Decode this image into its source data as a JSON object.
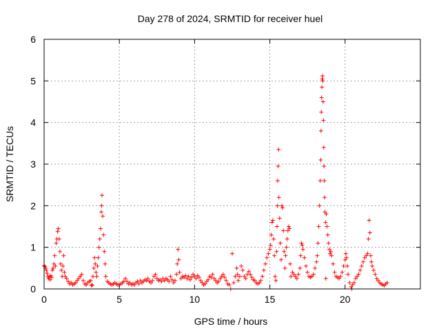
{
  "chart_data": {
    "type": "scatter",
    "title": "Day 278 of 2024, SRMTID for receiver huel",
    "xlabel": "GPS time / hours",
    "ylabel": "SRMTID / TECUs",
    "xlim": [
      0,
      25
    ],
    "ylim": [
      0,
      6
    ],
    "xticks": [
      0,
      5,
      10,
      15,
      20
    ],
    "yticks": [
      0,
      1,
      2,
      3,
      4,
      5,
      6
    ],
    "grid": true,
    "marker": "+",
    "marker_color": "#ff0000",
    "series": [
      {
        "name": "SRMTID",
        "points": [
          [
            0.0,
            0.56
          ],
          [
            0.05,
            0.54
          ],
          [
            0.1,
            0.5
          ],
          [
            0.15,
            0.45
          ],
          [
            0.2,
            0.38
          ],
          [
            0.25,
            0.3
          ],
          [
            0.3,
            0.25
          ],
          [
            0.35,
            0.3
          ],
          [
            0.4,
            0.22
          ],
          [
            0.45,
            0.32
          ],
          [
            0.5,
            0.28
          ],
          [
            0.55,
            0.45
          ],
          [
            0.6,
            0.5
          ],
          [
            0.65,
            0.6
          ],
          [
            0.7,
            0.8
          ],
          [
            0.75,
            0.55
          ],
          [
            0.8,
            1.1
          ],
          [
            0.85,
            1.2
          ],
          [
            0.9,
            1.38
          ],
          [
            0.95,
            1.45
          ],
          [
            1.0,
            1.2
          ],
          [
            1.05,
            0.9
          ],
          [
            1.1,
            0.6
          ],
          [
            1.15,
            0.45
          ],
          [
            1.2,
            0.3
          ],
          [
            1.25,
            0.55
          ],
          [
            1.3,
            0.8
          ],
          [
            1.35,
            0.4
          ],
          [
            1.4,
            0.3
          ],
          [
            1.5,
            0.25
          ],
          [
            1.6,
            0.18
          ],
          [
            1.7,
            0.12
          ],
          [
            1.8,
            0.15
          ],
          [
            1.9,
            0.1
          ],
          [
            2.0,
            0.12
          ],
          [
            2.1,
            0.15
          ],
          [
            2.2,
            0.2
          ],
          [
            2.3,
            0.25
          ],
          [
            2.4,
            0.3
          ],
          [
            2.5,
            0.35
          ],
          [
            2.6,
            0.2
          ],
          [
            2.7,
            0.12
          ],
          [
            2.8,
            0.1
          ],
          [
            2.9,
            0.15
          ],
          [
            3.0,
            0.18
          ],
          [
            3.1,
            0.2
          ],
          [
            3.15,
            0.08
          ],
          [
            3.2,
            0.1
          ],
          [
            3.25,
            0.3
          ],
          [
            3.3,
            0.5
          ],
          [
            3.35,
            0.75
          ],
          [
            3.4,
            0.6
          ],
          [
            3.45,
            0.4
          ],
          [
            3.5,
            0.3
          ],
          [
            3.55,
            0.55
          ],
          [
            3.6,
            0.75
          ],
          [
            3.65,
            1.0
          ],
          [
            3.7,
            1.2
          ],
          [
            3.75,
            1.45
          ],
          [
            3.8,
            1.85
          ],
          [
            3.82,
            2.0
          ],
          [
            3.85,
            2.25
          ],
          [
            3.9,
            1.75
          ],
          [
            3.95,
            1.3
          ],
          [
            4.0,
            0.9
          ],
          [
            4.05,
            0.6
          ],
          [
            4.1,
            0.3
          ],
          [
            4.2,
            0.18
          ],
          [
            4.3,
            0.15
          ],
          [
            4.4,
            0.12
          ],
          [
            4.5,
            0.1
          ],
          [
            4.6,
            0.12
          ],
          [
            4.7,
            0.15
          ],
          [
            4.8,
            0.12
          ],
          [
            4.9,
            0.1
          ],
          [
            5.0,
            0.1
          ],
          [
            5.1,
            0.12
          ],
          [
            5.2,
            0.15
          ],
          [
            5.3,
            0.18
          ],
          [
            5.4,
            0.25
          ],
          [
            5.5,
            0.18
          ],
          [
            5.6,
            0.12
          ],
          [
            5.7,
            0.15
          ],
          [
            5.8,
            0.1
          ],
          [
            5.9,
            0.12
          ],
          [
            6.0,
            0.1
          ],
          [
            6.1,
            0.15
          ],
          [
            6.2,
            0.18
          ],
          [
            6.3,
            0.12
          ],
          [
            6.4,
            0.2
          ],
          [
            6.5,
            0.15
          ],
          [
            6.6,
            0.18
          ],
          [
            6.7,
            0.22
          ],
          [
            6.8,
            0.2
          ],
          [
            6.9,
            0.25
          ],
          [
            7.0,
            0.18
          ],
          [
            7.1,
            0.15
          ],
          [
            7.2,
            0.2
          ],
          [
            7.3,
            0.3
          ],
          [
            7.4,
            0.35
          ],
          [
            7.5,
            0.25
          ],
          [
            7.6,
            0.2
          ],
          [
            7.7,
            0.22
          ],
          [
            7.8,
            0.18
          ],
          [
            7.9,
            0.25
          ],
          [
            8.0,
            0.2
          ],
          [
            8.1,
            0.25
          ],
          [
            8.2,
            0.22
          ],
          [
            8.3,
            0.18
          ],
          [
            8.4,
            0.3
          ],
          [
            8.5,
            0.22
          ],
          [
            8.6,
            0.15
          ],
          [
            8.7,
            0.2
          ],
          [
            8.8,
            0.35
          ],
          [
            8.85,
            0.6
          ],
          [
            8.9,
            0.95
          ],
          [
            8.95,
            0.7
          ],
          [
            9.0,
            0.4
          ],
          [
            9.1,
            0.25
          ],
          [
            9.2,
            0.3
          ],
          [
            9.3,
            0.28
          ],
          [
            9.4,
            0.32
          ],
          [
            9.5,
            0.25
          ],
          [
            9.6,
            0.3
          ],
          [
            9.7,
            0.22
          ],
          [
            9.8,
            0.28
          ],
          [
            9.9,
            0.35
          ],
          [
            10.0,
            0.3
          ],
          [
            10.1,
            0.25
          ],
          [
            10.2,
            0.32
          ],
          [
            10.3,
            0.28
          ],
          [
            10.4,
            0.2
          ],
          [
            10.5,
            0.15
          ],
          [
            10.6,
            0.1
          ],
          [
            10.7,
            0.12
          ],
          [
            10.8,
            0.18
          ],
          [
            10.9,
            0.22
          ],
          [
            11.0,
            0.3
          ],
          [
            11.1,
            0.28
          ],
          [
            11.2,
            0.35
          ],
          [
            11.3,
            0.25
          ],
          [
            11.4,
            0.2
          ],
          [
            11.5,
            0.15
          ],
          [
            11.6,
            0.18
          ],
          [
            11.7,
            0.25
          ],
          [
            11.8,
            0.3
          ],
          [
            11.9,
            0.35
          ],
          [
            12.0,
            0.28
          ],
          [
            12.1,
            0.2
          ],
          [
            12.2,
            0.12
          ],
          [
            12.3,
            0.1
          ],
          [
            12.4,
            0.0
          ],
          [
            12.5,
            0.85
          ],
          [
            12.6,
            0.15
          ],
          [
            12.7,
            0.3
          ],
          [
            12.8,
            0.5
          ],
          [
            12.85,
            0.35
          ],
          [
            12.9,
            0.2
          ],
          [
            13.0,
            0.3
          ],
          [
            13.1,
            0.55
          ],
          [
            13.2,
            0.45
          ],
          [
            13.3,
            0.3
          ],
          [
            13.4,
            0.25
          ],
          [
            13.5,
            0.35
          ],
          [
            13.6,
            0.42
          ],
          [
            13.7,
            0.35
          ],
          [
            13.8,
            0.28
          ],
          [
            13.9,
            0.22
          ],
          [
            14.0,
            0.2
          ],
          [
            14.1,
            0.15
          ],
          [
            14.2,
            0.12
          ],
          [
            14.3,
            0.15
          ],
          [
            14.4,
            0.2
          ],
          [
            14.5,
            0.3
          ],
          [
            14.6,
            0.45
          ],
          [
            14.7,
            0.6
          ],
          [
            14.8,
            0.75
          ],
          [
            14.9,
            0.85
          ],
          [
            15.0,
            0.95
          ],
          [
            15.05,
            1.05
          ],
          [
            15.1,
            1.3
          ],
          [
            15.15,
            1.6
          ],
          [
            15.2,
            1.65
          ],
          [
            15.25,
            1.2
          ],
          [
            15.3,
            0.8
          ],
          [
            15.35,
            0.3
          ],
          [
            15.4,
            0.2
          ],
          [
            15.45,
            0.9
          ],
          [
            15.48,
            1.5
          ],
          [
            15.5,
            2.0
          ],
          [
            15.52,
            2.6
          ],
          [
            15.55,
            2.95
          ],
          [
            15.58,
            3.35
          ],
          [
            15.6,
            2.2
          ],
          [
            15.65,
            1.7
          ],
          [
            15.7,
            1.1
          ],
          [
            15.75,
            0.7
          ],
          [
            15.8,
            2.0
          ],
          [
            15.85,
            1.95
          ],
          [
            15.9,
            1.4
          ],
          [
            15.95,
            0.9
          ],
          [
            16.0,
            0.5
          ],
          [
            16.05,
            0.8
          ],
          [
            16.1,
            1.0
          ],
          [
            16.15,
            1.2
          ],
          [
            16.2,
            1.4
          ],
          [
            16.25,
            1.5
          ],
          [
            16.3,
            1.45
          ],
          [
            16.35,
            0.6
          ],
          [
            16.4,
            0.3
          ],
          [
            16.5,
            0.4
          ],
          [
            16.6,
            0.35
          ],
          [
            16.7,
            0.3
          ],
          [
            16.8,
            0.25
          ],
          [
            16.9,
            0.35
          ],
          [
            17.0,
            0.5
          ],
          [
            17.05,
            0.8
          ],
          [
            17.1,
            1.1
          ],
          [
            17.15,
            1.05
          ],
          [
            17.2,
            0.95
          ],
          [
            17.3,
            0.75
          ],
          [
            17.4,
            0.55
          ],
          [
            17.5,
            0.4
          ],
          [
            17.6,
            0.3
          ],
          [
            17.7,
            0.28
          ],
          [
            17.8,
            0.3
          ],
          [
            17.9,
            0.35
          ],
          [
            18.0,
            0.5
          ],
          [
            18.1,
            0.65
          ],
          [
            18.15,
            0.8
          ],
          [
            18.2,
            1.1
          ],
          [
            18.25,
            1.5
          ],
          [
            18.3,
            2.0
          ],
          [
            18.35,
            2.6
          ],
          [
            18.38,
            3.1
          ],
          [
            18.4,
            3.8
          ],
          [
            18.42,
            4.25
          ],
          [
            18.44,
            4.6
          ],
          [
            18.46,
            4.85
          ],
          [
            18.48,
            5.05
          ],
          [
            18.5,
            5.12
          ],
          [
            18.52,
            5.0
          ],
          [
            18.54,
            4.5
          ],
          [
            18.56,
            4.05
          ],
          [
            18.58,
            3.4
          ],
          [
            18.6,
            2.95
          ],
          [
            18.62,
            2.6
          ],
          [
            18.64,
            2.2
          ],
          [
            18.66,
            1.85
          ],
          [
            18.7,
            1.6
          ],
          [
            18.72,
            0.25
          ],
          [
            18.75,
            1.8
          ],
          [
            18.8,
            1.5
          ],
          [
            18.85,
            1.3
          ],
          [
            18.9,
            1.1
          ],
          [
            18.95,
            0.95
          ],
          [
            19.0,
            0.85
          ],
          [
            19.05,
            0.9
          ],
          [
            19.1,
            0.8
          ],
          [
            19.2,
            0.6
          ],
          [
            19.3,
            0.4
          ],
          [
            19.4,
            0.3
          ],
          [
            19.5,
            0.28
          ],
          [
            19.6,
            0.25
          ],
          [
            19.7,
            0.3
          ],
          [
            19.8,
            0.4
          ],
          [
            19.9,
            0.55
          ],
          [
            20.0,
            0.7
          ],
          [
            20.05,
            0.85
          ],
          [
            20.1,
            0.75
          ],
          [
            20.15,
            0.55
          ],
          [
            20.2,
            0.35
          ],
          [
            20.3,
            0.15
          ],
          [
            20.4,
            0.05
          ],
          [
            20.45,
            0.0
          ],
          [
            20.5,
            0.1
          ],
          [
            20.6,
            0.15
          ],
          [
            20.7,
            0.25
          ],
          [
            20.8,
            0.3
          ],
          [
            20.9,
            0.35
          ],
          [
            21.0,
            0.45
          ],
          [
            21.1,
            0.55
          ],
          [
            21.2,
            0.65
          ],
          [
            21.3,
            0.75
          ],
          [
            21.4,
            0.8
          ],
          [
            21.5,
            0.85
          ],
          [
            21.55,
            1.2
          ],
          [
            21.6,
            1.65
          ],
          [
            21.65,
            1.35
          ],
          [
            21.7,
            0.8
          ],
          [
            21.75,
            0.65
          ],
          [
            21.8,
            0.55
          ],
          [
            21.9,
            0.45
          ],
          [
            22.0,
            0.35
          ],
          [
            22.1,
            0.25
          ],
          [
            22.2,
            0.2
          ],
          [
            22.3,
            0.15
          ],
          [
            22.4,
            0.12
          ],
          [
            22.5,
            0.1
          ],
          [
            22.6,
            0.08
          ],
          [
            22.7,
            0.12
          ],
          [
            22.8,
            0.15
          ]
        ]
      }
    ]
  }
}
